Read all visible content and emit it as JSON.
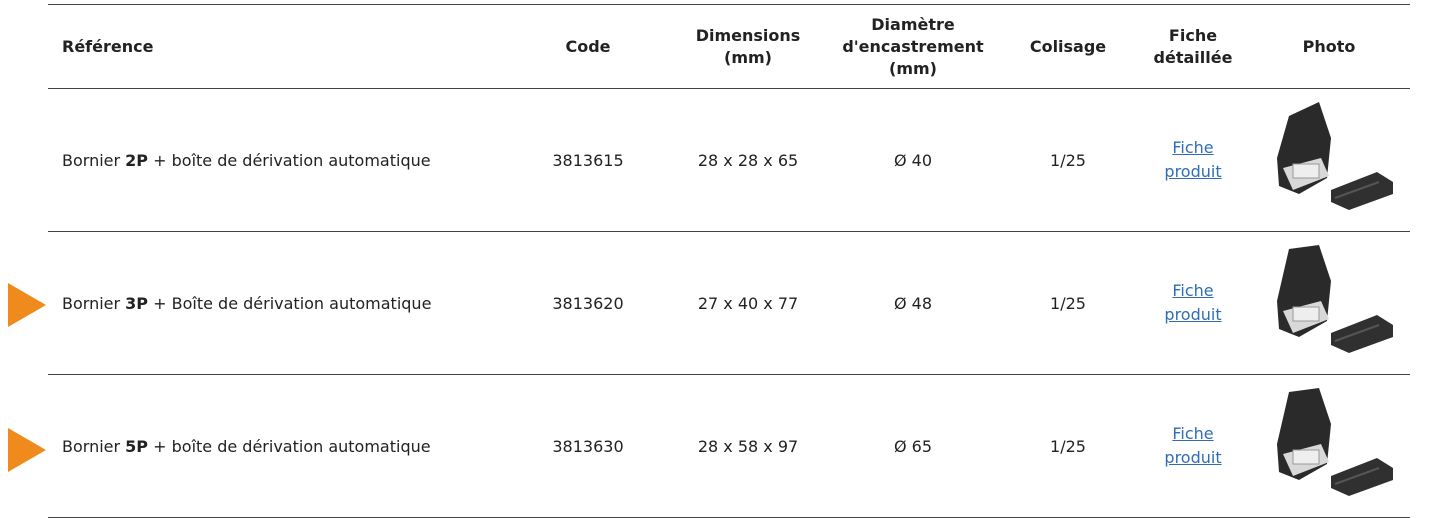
{
  "table": {
    "columns": [
      "Référence",
      "Code",
      "Dimensions (mm)",
      "Diamètre d'encastrement (mm)",
      "Colisage",
      "Fiche détaillée",
      "Photo"
    ],
    "rows": [
      {
        "reference": {
          "before": "Bornier",
          "bold": "2P",
          "after": "+ boîte de dérivation automatique"
        },
        "code": "3813615",
        "dimensions": "28 x 28 x 65",
        "diameter": "Ø 40",
        "packing": "1/25",
        "link": "Fiche produit"
      },
      {
        "reference": {
          "before": "Bornier",
          "bold": "3P",
          "after": "+ Boîte de dérivation automatique"
        },
        "code": "3813620",
        "dimensions": "27 x 40 x 77",
        "diameter": "Ø 48",
        "packing": "1/25",
        "link": "Fiche produit"
      },
      {
        "reference": {
          "before": "Bornier",
          "bold": "5P",
          "after": "+ boîte de dérivation automatique"
        },
        "code": "3813630",
        "dimensions": "28 x 58 x 97",
        "diameter": "Ø 65",
        "packing": "1/25",
        "link": "Fiche produit"
      }
    ]
  }
}
